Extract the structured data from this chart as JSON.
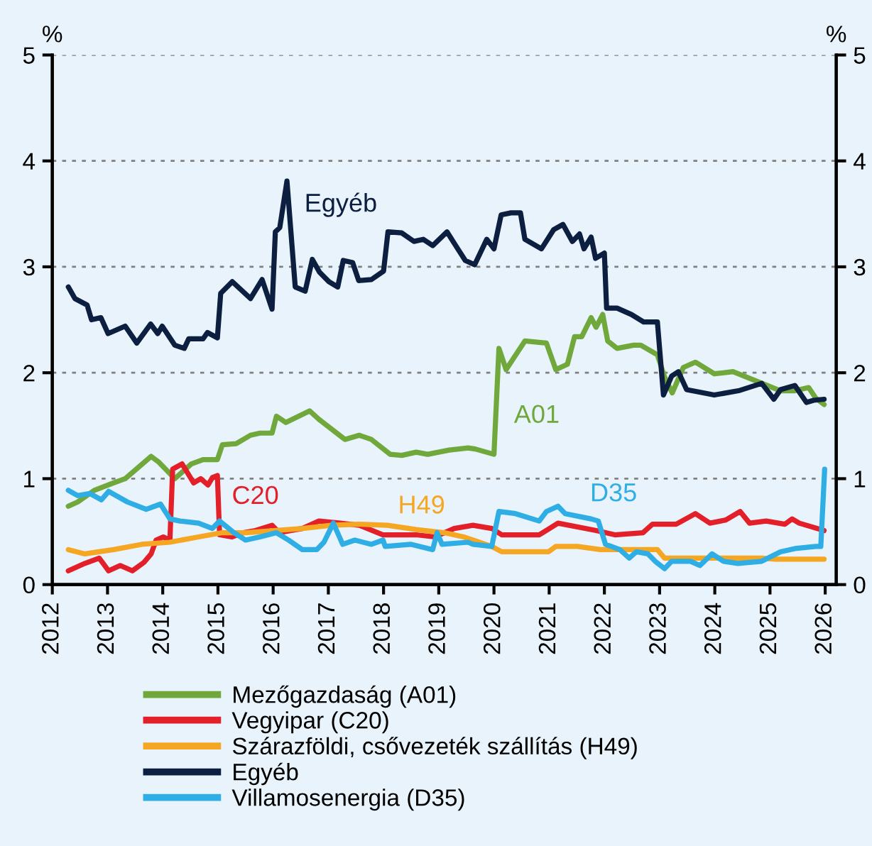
{
  "chart_data": {
    "type": "line",
    "ylabel": "%",
    "y2label": "%",
    "xlim": [
      2012,
      2026.2
    ],
    "xticks": [
      2012,
      2013,
      2014,
      2015,
      2016,
      2017,
      2018,
      2019,
      2020,
      2021,
      2022,
      2023,
      2024,
      2025,
      2026
    ],
    "ylim": [
      0,
      5
    ],
    "yticks": [
      0,
      1,
      2,
      3,
      4,
      5
    ],
    "y2lim": [
      0,
      5
    ],
    "y2ticks": [
      0,
      1,
      2,
      3,
      4,
      5
    ],
    "grid": "y",
    "legend": "bottom",
    "line_style": "solid",
    "marker": "none",
    "annotations": [
      "A01",
      "C20",
      "H49",
      "Egyéb",
      "D35"
    ],
    "series": [
      {
        "name": "Mezőgazdaság (A01)",
        "color": "#70a83c",
        "x": [
          2012.29,
          2012.46,
          2012.76,
          2013.11,
          2013.32,
          2013.79,
          2013.92,
          2014.22,
          2014.52,
          2014.73,
          2014.99,
          2015.08,
          2015.33,
          2015.59,
          2015.76,
          2015.98,
          2016.06,
          2016.23,
          2016.66,
          2016.83,
          2017.3,
          2017.56,
          2017.78,
          2018.12,
          2018.33,
          2018.59,
          2018.8,
          2019.19,
          2019.53,
          2019.66,
          2020.0,
          2020.09,
          2020.22,
          2020.56,
          2020.95,
          2021.12,
          2021.33,
          2021.46,
          2021.59,
          2021.76,
          2021.85,
          2021.97,
          2022.06,
          2022.23,
          2022.53,
          2022.66,
          2022.96,
          2023.09,
          2023.23,
          2023.43,
          2023.65,
          2023.99,
          2024.33,
          2024.76,
          2025.19,
          2025.45,
          2025.7,
          2025.83,
          2025.98
        ],
        "values": [
          0.74,
          0.78,
          0.89,
          0.96,
          1.0,
          1.21,
          1.16,
          1.0,
          1.14,
          1.18,
          1.18,
          1.32,
          1.33,
          1.41,
          1.43,
          1.43,
          1.59,
          1.53,
          1.64,
          1.56,
          1.37,
          1.41,
          1.37,
          1.23,
          1.22,
          1.25,
          1.23,
          1.27,
          1.29,
          1.28,
          1.23,
          2.23,
          2.03,
          2.3,
          2.28,
          2.03,
          2.08,
          2.34,
          2.34,
          2.52,
          2.43,
          2.55,
          2.3,
          2.23,
          2.26,
          2.26,
          2.17,
          1.96,
          1.81,
          2.05,
          2.1,
          1.99,
          2.01,
          1.92,
          1.83,
          1.83,
          1.86,
          1.76,
          1.7
        ]
      },
      {
        "name": "Vegyipar (C20)",
        "color": "#e3202a",
        "x": [
          2012.29,
          2012.59,
          2012.85,
          2013.02,
          2013.23,
          2013.45,
          2013.66,
          2013.79,
          2013.88,
          2014.01,
          2014.13,
          2014.18,
          2014.35,
          2014.56,
          2014.69,
          2014.82,
          2014.9,
          2014.99,
          2015.03,
          2015.25,
          2015.46,
          2015.68,
          2015.98,
          2016.11,
          2016.53,
          2016.83,
          2017.22,
          2017.56,
          2017.99,
          2018.59,
          2018.93,
          2019.28,
          2019.62,
          2019.96,
          2020.14,
          2020.82,
          2021.16,
          2021.85,
          2022.19,
          2022.7,
          2022.87,
          2023.3,
          2023.65,
          2023.91,
          2024.2,
          2024.46,
          2024.63,
          2024.93,
          2025.27,
          2025.4,
          2025.53,
          2025.98
        ],
        "values": [
          0.13,
          0.2,
          0.25,
          0.13,
          0.18,
          0.13,
          0.21,
          0.29,
          0.42,
          0.45,
          0.42,
          1.09,
          1.14,
          0.96,
          1.0,
          0.94,
          1.01,
          1.03,
          0.47,
          0.45,
          0.49,
          0.51,
          0.56,
          0.49,
          0.53,
          0.6,
          0.58,
          0.56,
          0.47,
          0.47,
          0.45,
          0.53,
          0.56,
          0.53,
          0.47,
          0.47,
          0.58,
          0.51,
          0.47,
          0.49,
          0.57,
          0.57,
          0.67,
          0.58,
          0.61,
          0.69,
          0.58,
          0.6,
          0.57,
          0.62,
          0.58,
          0.51
        ]
      },
      {
        "name": "Szárazföldi, csővezeték szállítás (H49)",
        "color": "#f5a623",
        "x": [
          2012.29,
          2012.59,
          2013.11,
          2013.62,
          2014.13,
          2014.65,
          2015.08,
          2015.5,
          2016.02,
          2016.53,
          2017.05,
          2017.56,
          2018.07,
          2018.59,
          2019.1,
          2019.45,
          2019.62,
          2019.96,
          2020.14,
          2020.99,
          2021.12,
          2021.51,
          2021.93,
          2022.96,
          2023.09,
          2023.99,
          2024.85,
          2025.1,
          2025.98
        ],
        "values": [
          0.33,
          0.29,
          0.33,
          0.38,
          0.4,
          0.45,
          0.49,
          0.49,
          0.51,
          0.53,
          0.56,
          0.57,
          0.56,
          0.52,
          0.49,
          0.45,
          0.42,
          0.36,
          0.31,
          0.31,
          0.36,
          0.36,
          0.33,
          0.33,
          0.25,
          0.25,
          0.25,
          0.24,
          0.24
        ]
      },
      {
        "name": "Egyéb",
        "color": "#0d1f40",
        "x": [
          2012.29,
          2012.41,
          2012.63,
          2012.71,
          2012.88,
          2013.01,
          2013.32,
          2013.53,
          2013.78,
          2013.91,
          2013.99,
          2014.22,
          2014.39,
          2014.47,
          2014.73,
          2014.81,
          2014.99,
          2015.05,
          2015.26,
          2015.59,
          2015.8,
          2015.98,
          2016.04,
          2016.12,
          2016.25,
          2016.4,
          2016.58,
          2016.71,
          2016.84,
          2017.01,
          2017.17,
          2017.27,
          2017.44,
          2017.55,
          2017.78,
          2018.0,
          2018.08,
          2018.33,
          2018.55,
          2018.72,
          2018.89,
          2019.15,
          2019.32,
          2019.48,
          2019.65,
          2019.87,
          2020.0,
          2020.13,
          2020.31,
          2020.48,
          2020.56,
          2020.86,
          2021.08,
          2021.25,
          2021.42,
          2021.55,
          2021.63,
          2021.76,
          2021.84,
          2022.0,
          2022.04,
          2022.23,
          2022.49,
          2022.71,
          2022.96,
          2023.07,
          2023.22,
          2023.34,
          2023.49,
          2023.99,
          2024.43,
          2024.85,
          2025.07,
          2025.19,
          2025.45,
          2025.66,
          2025.79,
          2025.98
        ],
        "values": [
          2.81,
          2.7,
          2.64,
          2.5,
          2.52,
          2.37,
          2.44,
          2.28,
          2.46,
          2.37,
          2.44,
          2.26,
          2.23,
          2.32,
          2.32,
          2.38,
          2.33,
          2.75,
          2.86,
          2.7,
          2.88,
          2.6,
          3.33,
          3.37,
          3.81,
          2.81,
          2.77,
          3.07,
          2.95,
          2.86,
          2.81,
          3.06,
          3.04,
          2.87,
          2.88,
          2.96,
          3.33,
          3.32,
          3.24,
          3.26,
          3.2,
          3.33,
          3.19,
          3.06,
          3.02,
          3.26,
          3.17,
          3.49,
          3.51,
          3.51,
          3.26,
          3.17,
          3.35,
          3.4,
          3.24,
          3.31,
          3.17,
          3.28,
          3.08,
          3.13,
          2.61,
          2.61,
          2.55,
          2.48,
          2.48,
          1.79,
          1.97,
          2.01,
          1.84,
          1.79,
          1.83,
          1.9,
          1.75,
          1.84,
          1.88,
          1.72,
          1.74,
          1.75
        ]
      },
      {
        "name": "Villamosenergia (D35)",
        "color": "#2eaee4",
        "x": [
          2012.29,
          2012.46,
          2012.68,
          2012.89,
          2013.02,
          2013.36,
          2013.7,
          2013.96,
          2014.13,
          2014.31,
          2014.65,
          2014.9,
          2015.03,
          2015.29,
          2015.5,
          2015.76,
          2016.06,
          2016.28,
          2016.53,
          2016.79,
          2016.92,
          2017.09,
          2017.26,
          2017.48,
          2017.78,
          2017.99,
          2018.03,
          2018.5,
          2018.89,
          2018.97,
          2019.06,
          2019.53,
          2019.62,
          2019.96,
          2020.09,
          2020.39,
          2020.82,
          2020.95,
          2021.16,
          2021.29,
          2021.76,
          2021.89,
          2022.02,
          2022.28,
          2022.45,
          2022.58,
          2022.79,
          2022.92,
          2023.09,
          2023.22,
          2023.56,
          2023.73,
          2023.95,
          2024.16,
          2024.42,
          2024.85,
          2025.19,
          2025.45,
          2025.83,
          2025.92,
          2025.99
        ],
        "values": [
          0.89,
          0.84,
          0.86,
          0.8,
          0.88,
          0.78,
          0.71,
          0.76,
          0.62,
          0.6,
          0.58,
          0.53,
          0.6,
          0.49,
          0.42,
          0.45,
          0.49,
          0.42,
          0.33,
          0.33,
          0.4,
          0.58,
          0.38,
          0.42,
          0.38,
          0.42,
          0.36,
          0.38,
          0.33,
          0.49,
          0.38,
          0.4,
          0.38,
          0.36,
          0.69,
          0.67,
          0.6,
          0.69,
          0.74,
          0.67,
          0.62,
          0.6,
          0.38,
          0.33,
          0.25,
          0.31,
          0.29,
          0.22,
          0.15,
          0.22,
          0.22,
          0.18,
          0.29,
          0.22,
          0.2,
          0.22,
          0.31,
          0.34,
          0.36,
          0.36,
          1.09
        ]
      }
    ]
  }
}
